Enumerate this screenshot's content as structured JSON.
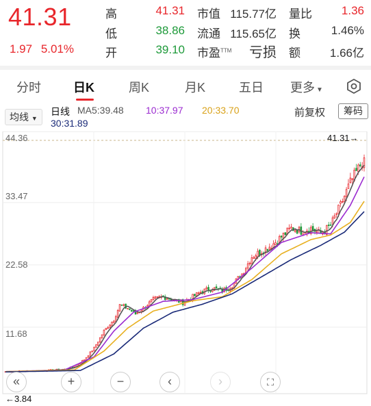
{
  "quote": {
    "price": "41.31",
    "change": "1.97",
    "change_pct": "5.01%",
    "fields": [
      {
        "label": "高",
        "value": "41.31",
        "color": "#e8262b"
      },
      {
        "label": "低",
        "value": "38.86",
        "color": "#1e9a3a"
      },
      {
        "label": "开",
        "value": "39.10",
        "color": "#1e9a3a"
      },
      {
        "label": "市值",
        "value": "115.77亿",
        "color": "#333333"
      },
      {
        "label": "流通",
        "value": "115.65亿",
        "color": "#333333"
      },
      {
        "label": "市盈",
        "label_tm": "TTM",
        "value": "亏损",
        "color": "#333333"
      },
      {
        "label": "量比",
        "value": "1.36",
        "color": "#e8262b"
      },
      {
        "label": "换",
        "value": "1.46%",
        "color": "#333333"
      },
      {
        "label": "额",
        "value": "1.66亿",
        "color": "#333333"
      }
    ]
  },
  "tabs": [
    {
      "label": "分时"
    },
    {
      "label": "日K",
      "active": true
    },
    {
      "label": "周K"
    },
    {
      "label": "月K"
    },
    {
      "label": "五日"
    },
    {
      "label": "更多"
    }
  ],
  "toolbar": {
    "ma_selector": "均线",
    "period": "日线",
    "ma5": "MA5:39.48",
    "ma10": "10:37.97",
    "ma20": "20:33.70",
    "ma30": "30:31.89",
    "adjust_button": "前复权",
    "chip_button": "筹码"
  },
  "colors": {
    "up": "#e8262b",
    "down": "#1e9a3a",
    "ma5": "#555555",
    "ma10": "#9b2bd0",
    "ma20": "#e8b020",
    "ma30": "#1a2a78"
  },
  "chart_data": {
    "type": "candlestick",
    "y_ticks": [
      "44.36",
      "33.47",
      "22.58",
      "11.68"
    ],
    "ylim": [
      1.0,
      44.36
    ],
    "max_label": "41.31→",
    "min_label": "←3.84",
    "trend": [
      [
        0,
        3.9
      ],
      [
        10,
        4.0
      ],
      [
        20,
        4.1
      ],
      [
        30,
        4.3
      ],
      [
        35,
        4.8
      ],
      [
        40,
        6
      ],
      [
        45,
        8
      ],
      [
        50,
        11
      ],
      [
        55,
        13
      ],
      [
        58,
        15.5
      ],
      [
        62,
        15
      ],
      [
        66,
        14
      ],
      [
        70,
        15
      ],
      [
        75,
        16.5
      ],
      [
        80,
        17
      ],
      [
        85,
        16.5
      ],
      [
        90,
        16
      ],
      [
        95,
        17
      ],
      [
        100,
        18
      ],
      [
        105,
        18.5
      ],
      [
        110,
        18
      ],
      [
        115,
        19
      ],
      [
        120,
        21
      ],
      [
        125,
        24
      ],
      [
        130,
        25
      ],
      [
        135,
        26
      ],
      [
        140,
        27.5
      ],
      [
        145,
        29
      ],
      [
        150,
        28.5
      ],
      [
        155,
        29
      ],
      [
        160,
        28
      ],
      [
        165,
        29.5
      ],
      [
        170,
        33
      ],
      [
        175,
        37
      ],
      [
        180,
        40
      ],
      [
        182,
        41.31
      ]
    ],
    "ma_trend": {
      "ma10": [
        [
          0,
          3.9
        ],
        [
          30,
          4.2
        ],
        [
          45,
          6.5
        ],
        [
          55,
          11
        ],
        [
          65,
          14.3
        ],
        [
          80,
          16.2
        ],
        [
          95,
          16.5
        ],
        [
          110,
          17.8
        ],
        [
          125,
          22
        ],
        [
          140,
          26.5
        ],
        [
          155,
          28.2
        ],
        [
          165,
          28
        ],
        [
          175,
          33
        ],
        [
          182,
          37.97
        ]
      ],
      "ma20": [
        [
          0,
          3.9
        ],
        [
          35,
          4.2
        ],
        [
          50,
          7.5
        ],
        [
          62,
          11.5
        ],
        [
          75,
          14.5
        ],
        [
          95,
          16.3
        ],
        [
          110,
          17
        ],
        [
          125,
          20
        ],
        [
          140,
          24.5
        ],
        [
          155,
          27
        ],
        [
          165,
          27.8
        ],
        [
          175,
          30
        ],
        [
          182,
          33.7
        ]
      ],
      "ma30": [
        [
          0,
          3.85
        ],
        [
          38,
          4.1
        ],
        [
          55,
          7
        ],
        [
          70,
          11.5
        ],
        [
          85,
          14.3
        ],
        [
          100,
          15.7
        ],
        [
          115,
          17.5
        ],
        [
          130,
          20.5
        ],
        [
          145,
          23.5
        ],
        [
          160,
          26
        ],
        [
          172,
          28.3
        ],
        [
          182,
          31.89
        ]
      ]
    },
    "days": 183
  }
}
